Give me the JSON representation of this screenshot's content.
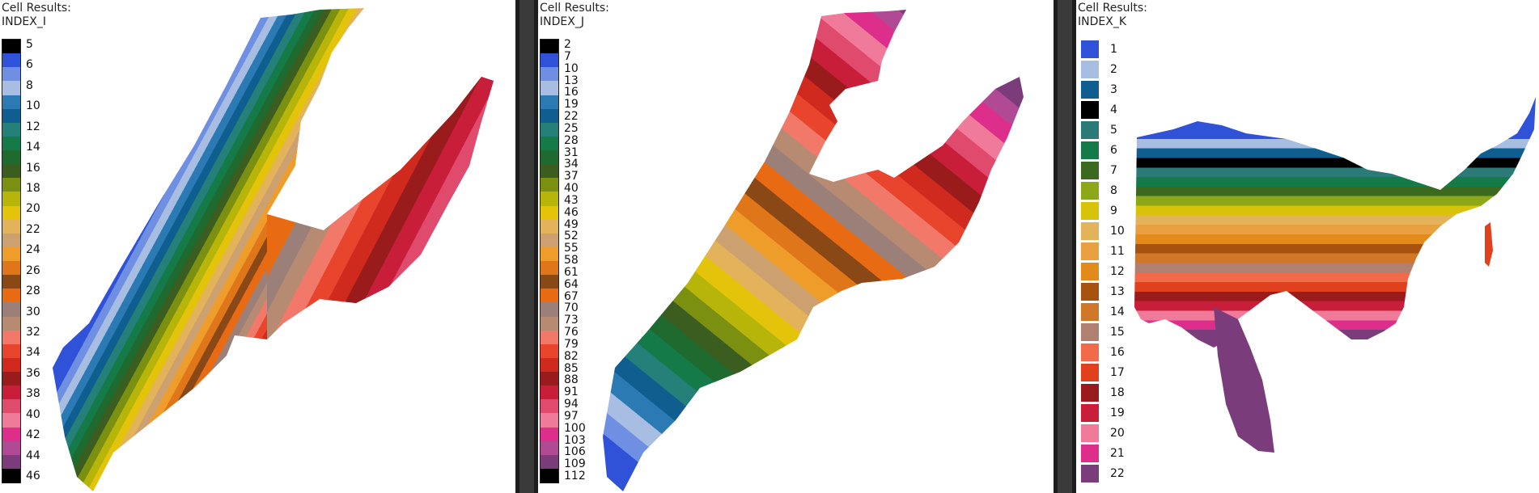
{
  "views": [
    {
      "title": "Cell Results:",
      "result": "INDEX_I",
      "ticks": [
        "5",
        "6",
        "8",
        "10",
        "12",
        "14",
        "16",
        "18",
        "20",
        "22",
        "24",
        "26",
        "28",
        "30",
        "32",
        "34",
        "36",
        "38",
        "40",
        "42",
        "44",
        "46"
      ],
      "palette": [
        "#000000",
        "#3052d8",
        "#6f8fe3",
        "#a7bde2",
        "#2b7ab4",
        "#0f5e8f",
        "#26807a",
        "#137a48",
        "#1f6a2e",
        "#3b5d1f",
        "#7b8f10",
        "#b8b50a",
        "#e4c40a",
        "#e2b35b",
        "#cda070",
        "#ef9d2a",
        "#e0761a",
        "#8a4817",
        "#e86a12",
        "#9a8078",
        "#b78a72",
        "#f2786a",
        "#e8452c",
        "#d02a1f",
        "#9a1b1b",
        "#c81e3a",
        "#e04b6d",
        "#f07a9a",
        "#de2e8c",
        "#b04a94",
        "#7b3c7b",
        "#000000"
      ]
    },
    {
      "title": "Cell Results:",
      "result": "INDEX_J",
      "ticks": [
        "2",
        "7",
        "10",
        "13",
        "16",
        "19",
        "22",
        "25",
        "28",
        "31",
        "34",
        "37",
        "40",
        "43",
        "46",
        "49",
        "52",
        "55",
        "58",
        "61",
        "64",
        "67",
        "70",
        "73",
        "76",
        "79",
        "82",
        "85",
        "88",
        "91",
        "94",
        "97",
        "100",
        "103",
        "106",
        "109",
        "112"
      ],
      "palette": [
        "#000000",
        "#3052d8",
        "#6f8fe3",
        "#a7bde2",
        "#2b7ab4",
        "#0f5e8f",
        "#26807a",
        "#137a48",
        "#1f6a2e",
        "#3b5d1f",
        "#7b8f10",
        "#b8b50a",
        "#e4c40a",
        "#e2b35b",
        "#cda070",
        "#ef9d2a",
        "#e0761a",
        "#8a4817",
        "#e86a12",
        "#9a8078",
        "#b78a72",
        "#f2786a",
        "#e8452c",
        "#d02a1f",
        "#9a1b1b",
        "#c81e3a",
        "#e04b6d",
        "#f07a9a",
        "#de2e8c",
        "#b04a94",
        "#7b3c7b",
        "#000000"
      ]
    },
    {
      "title": "Cell Results:",
      "result": "INDEX_K",
      "ticks": [
        "1",
        "2",
        "3",
        "4",
        "5",
        "6",
        "7",
        "8",
        "9",
        "10",
        "11",
        "12",
        "13",
        "14",
        "15",
        "16",
        "17",
        "18",
        "19",
        "20",
        "21",
        "22"
      ],
      "palette": [
        "#3052d8",
        "#a7bde2",
        "#0f5e8f",
        "#000000",
        "#2b7a78",
        "#137a48",
        "#3b6a1f",
        "#8ca818",
        "#d9c20a",
        "#e2b35b",
        "#e8a040",
        "#e28a1a",
        "#a8520f",
        "#d07828",
        "#b08070",
        "#f26a4a",
        "#e0401e",
        "#9a1b1b",
        "#c81e3a",
        "#f07a9a",
        "#de2e8c",
        "#7b3c7b"
      ]
    }
  ]
}
